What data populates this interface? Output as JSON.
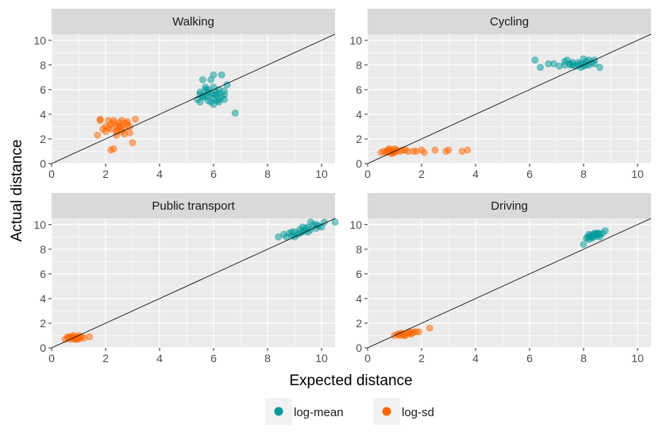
{
  "chart_data": {
    "type": "scatter",
    "title": "",
    "xlabel": "Expected distance",
    "ylabel": "Actual distance",
    "xlim": [
      0,
      10.5
    ],
    "ylim": [
      0,
      10.5
    ],
    "xticks": [
      0,
      2,
      4,
      6,
      8,
      10
    ],
    "yticks": [
      0,
      2,
      4,
      6,
      8,
      10
    ],
    "grid": true,
    "reference_line": "y = x",
    "legend": {
      "position": "bottom",
      "entries": [
        {
          "name": "log-mean",
          "color": "#009999"
        },
        {
          "name": "log-sd",
          "color": "#ff6600"
        }
      ]
    },
    "facets": [
      {
        "title": "Walking",
        "series": [
          {
            "name": "log-mean",
            "color": "#009999",
            "points": [
              [
                5.5,
                5.0
              ],
              [
                5.6,
                5.5
              ],
              [
                5.7,
                6.2
              ],
              [
                5.8,
                5.8
              ],
              [
                5.9,
                6.8
              ],
              [
                6.0,
                5.3
              ],
              [
                6.1,
                5.6
              ],
              [
                6.2,
                6.0
              ],
              [
                6.3,
                7.2
              ],
              [
                5.4,
                5.2
              ],
              [
                5.6,
                6.8
              ],
              [
                5.8,
                5.1
              ],
              [
                6.0,
                4.8
              ],
              [
                6.2,
                5.2
              ],
              [
                6.4,
                5.6
              ],
              [
                6.5,
                6.4
              ],
              [
                6.8,
                4.1
              ],
              [
                5.5,
                5.8
              ],
              [
                5.7,
                5.4
              ],
              [
                5.9,
                5.0
              ],
              [
                6.1,
                5.8
              ],
              [
                6.3,
                5.4
              ],
              [
                6.4,
                5.2
              ],
              [
                5.6,
                5.4
              ],
              [
                5.8,
                6.0
              ],
              [
                6.0,
                5.6
              ],
              [
                6.2,
                5.0
              ],
              [
                5.5,
                5.6
              ],
              [
                5.7,
                6.0
              ],
              [
                6.1,
                5.1
              ],
              [
                6.2,
                5.7
              ],
              [
                5.9,
                5.7
              ],
              [
                6.4,
                5.9
              ],
              [
                5.8,
                5.5
              ],
              [
                6.0,
                6.2
              ],
              [
                6.0,
                7.2
              ]
            ]
          },
          {
            "name": "log-sd",
            "color": "#ff6600",
            "points": [
              [
                1.7,
                2.3
              ],
              [
                1.8,
                3.5
              ],
              [
                1.9,
                2.8
              ],
              [
                2.0,
                3.0
              ],
              [
                2.1,
                3.5
              ],
              [
                2.2,
                2.8
              ],
              [
                2.3,
                3.3
              ],
              [
                2.4,
                2.3
              ],
              [
                2.5,
                3.0
              ],
              [
                2.6,
                3.5
              ],
              [
                2.7,
                2.8
              ],
              [
                2.8,
                3.2
              ],
              [
                2.9,
                3.0
              ],
              [
                3.0,
                1.7
              ],
              [
                3.1,
                3.6
              ],
              [
                2.3,
                1.2
              ],
              [
                2.2,
                1.1
              ],
              [
                2.4,
                2.6
              ],
              [
                2.5,
                3.3
              ],
              [
                2.6,
                2.6
              ],
              [
                2.7,
                2.4
              ],
              [
                2.8,
                3.4
              ],
              [
                2.5,
                2.9
              ],
              [
                2.4,
                3.1
              ],
              [
                2.6,
                3.0
              ],
              [
                1.8,
                3.6
              ],
              [
                2.0,
                2.6
              ],
              [
                2.2,
                3.2
              ],
              [
                2.9,
                2.5
              ],
              [
                2.3,
                3.5
              ],
              [
                2.1,
                2.9
              ],
              [
                2.7,
                3.3
              ],
              [
                2.45,
                2.7
              ]
            ]
          }
        ]
      },
      {
        "title": "Cycling",
        "series": [
          {
            "name": "log-mean",
            "color": "#009999",
            "points": [
              [
                6.2,
                8.4
              ],
              [
                6.4,
                7.8
              ],
              [
                6.7,
                8.1
              ],
              [
                6.9,
                8.1
              ],
              [
                7.1,
                7.9
              ],
              [
                7.3,
                8.3
              ],
              [
                7.5,
                8.1
              ],
              [
                7.6,
                8.0
              ],
              [
                7.8,
                8.2
              ],
              [
                7.9,
                8.1
              ],
              [
                8.0,
                7.9
              ],
              [
                8.1,
                8.3
              ],
              [
                8.2,
                8.0
              ],
              [
                8.3,
                8.2
              ],
              [
                8.4,
                8.1
              ],
              [
                8.6,
                7.8
              ],
              [
                7.4,
                8.4
              ],
              [
                7.7,
                7.9
              ],
              [
                8.0,
                8.5
              ],
              [
                8.2,
                8.4
              ],
              [
                7.5,
                8.0
              ],
              [
                7.9,
                7.8
              ],
              [
                8.1,
                8.0
              ],
              [
                7.3,
                8.0
              ],
              [
                8.4,
                8.4
              ],
              [
                7.6,
                8.2
              ],
              [
                7.8,
                8.0
              ],
              [
                8.0,
                8.1
              ]
            ]
          },
          {
            "name": "log-sd",
            "color": "#ff6600",
            "points": [
              [
                0.5,
                0.9
              ],
              [
                0.6,
                1.0
              ],
              [
                0.7,
                0.9
              ],
              [
                0.75,
                1.1
              ],
              [
                0.8,
                1.0
              ],
              [
                0.85,
                0.9
              ],
              [
                0.9,
                1.1
              ],
              [
                0.95,
                1.0
              ],
              [
                1.0,
                0.9
              ],
              [
                1.05,
                1.0
              ],
              [
                1.1,
                1.1
              ],
              [
                1.2,
                1.0
              ],
              [
                1.3,
                1.1
              ],
              [
                1.5,
                1.0
              ],
              [
                1.7,
                1.0
              ],
              [
                2.0,
                1.1
              ],
              [
                2.5,
                1.1
              ],
              [
                2.9,
                1.0
              ],
              [
                3.0,
                1.1
              ],
              [
                3.5,
                1.0
              ],
              [
                3.7,
                1.1
              ],
              [
                0.8,
                1.2
              ],
              [
                0.9,
                0.8
              ],
              [
                1.0,
                1.2
              ],
              [
                0.7,
                1.0
              ],
              [
                1.4,
                1.1
              ],
              [
                1.8,
                1.0
              ],
              [
                2.1,
                0.9
              ]
            ]
          }
        ]
      },
      {
        "title": "Public transport",
        "series": [
          {
            "name": "log-mean",
            "color": "#009999",
            "points": [
              [
                8.4,
                9.0
              ],
              [
                8.6,
                9.2
              ],
              [
                8.7,
                9.0
              ],
              [
                8.8,
                9.3
              ],
              [
                8.9,
                9.1
              ],
              [
                9.0,
                9.4
              ],
              [
                9.1,
                9.2
              ],
              [
                9.2,
                9.6
              ],
              [
                9.3,
                9.4
              ],
              [
                9.4,
                9.5
              ],
              [
                9.5,
                9.8
              ],
              [
                9.6,
                9.6
              ],
              [
                9.7,
                10.0
              ],
              [
                9.8,
                9.7
              ],
              [
                9.9,
                9.9
              ],
              [
                10.0,
                9.8
              ],
              [
                10.1,
                10.2
              ],
              [
                10.5,
                10.2
              ],
              [
                9.6,
                10.2
              ],
              [
                9.0,
                9.0
              ],
              [
                9.2,
                9.3
              ],
              [
                9.4,
                9.7
              ],
              [
                9.8,
                10.0
              ],
              [
                8.9,
                9.4
              ],
              [
                9.5,
                9.4
              ],
              [
                9.3,
                9.8
              ]
            ]
          },
          {
            "name": "log-sd",
            "color": "#ff6600",
            "points": [
              [
                0.5,
                0.7
              ],
              [
                0.6,
                0.8
              ],
              [
                0.7,
                0.7
              ],
              [
                0.75,
                0.9
              ],
              [
                0.8,
                0.8
              ],
              [
                0.85,
                0.7
              ],
              [
                0.9,
                0.9
              ],
              [
                0.95,
                0.8
              ],
              [
                1.0,
                1.0
              ],
              [
                1.05,
                0.8
              ],
              [
                1.1,
                0.9
              ],
              [
                1.0,
                0.7
              ],
              [
                1.4,
                0.9
              ],
              [
                0.7,
                0.9
              ],
              [
                0.9,
                0.7
              ],
              [
                0.8,
                1.0
              ],
              [
                0.6,
                0.9
              ],
              [
                1.2,
                0.8
              ]
            ]
          }
        ]
      },
      {
        "title": "Driving",
        "series": [
          {
            "name": "log-mean",
            "color": "#009999",
            "points": [
              [
                8.0,
                8.4
              ],
              [
                8.1,
                8.9
              ],
              [
                8.15,
                9.0
              ],
              [
                8.2,
                8.8
              ],
              [
                8.25,
                9.1
              ],
              [
                8.3,
                9.0
              ],
              [
                8.35,
                9.2
              ],
              [
                8.4,
                9.0
              ],
              [
                8.45,
                9.2
              ],
              [
                8.5,
                9.1
              ],
              [
                8.55,
                9.3
              ],
              [
                8.6,
                9.2
              ],
              [
                8.7,
                9.3
              ],
              [
                8.8,
                9.5
              ],
              [
                8.2,
                9.2
              ],
              [
                8.4,
                9.3
              ],
              [
                8.6,
                9.0
              ],
              [
                8.3,
                8.9
              ],
              [
                8.5,
                9.3
              ]
            ]
          },
          {
            "name": "log-sd",
            "color": "#ff6600",
            "points": [
              [
                1.0,
                1.0
              ],
              [
                1.1,
                1.1
              ],
              [
                1.2,
                1.0
              ],
              [
                1.25,
                1.2
              ],
              [
                1.3,
                1.1
              ],
              [
                1.4,
                1.0
              ],
              [
                1.5,
                1.2
              ],
              [
                1.6,
                1.1
              ],
              [
                1.7,
                1.3
              ],
              [
                1.8,
                1.3
              ],
              [
                1.9,
                1.3
              ],
              [
                2.3,
                1.6
              ],
              [
                1.35,
                1.0
              ],
              [
                1.45,
                1.2
              ],
              [
                1.15,
                1.1
              ],
              [
                1.55,
                1.3
              ],
              [
                1.65,
                1.2
              ]
            ]
          }
        ]
      }
    ]
  }
}
